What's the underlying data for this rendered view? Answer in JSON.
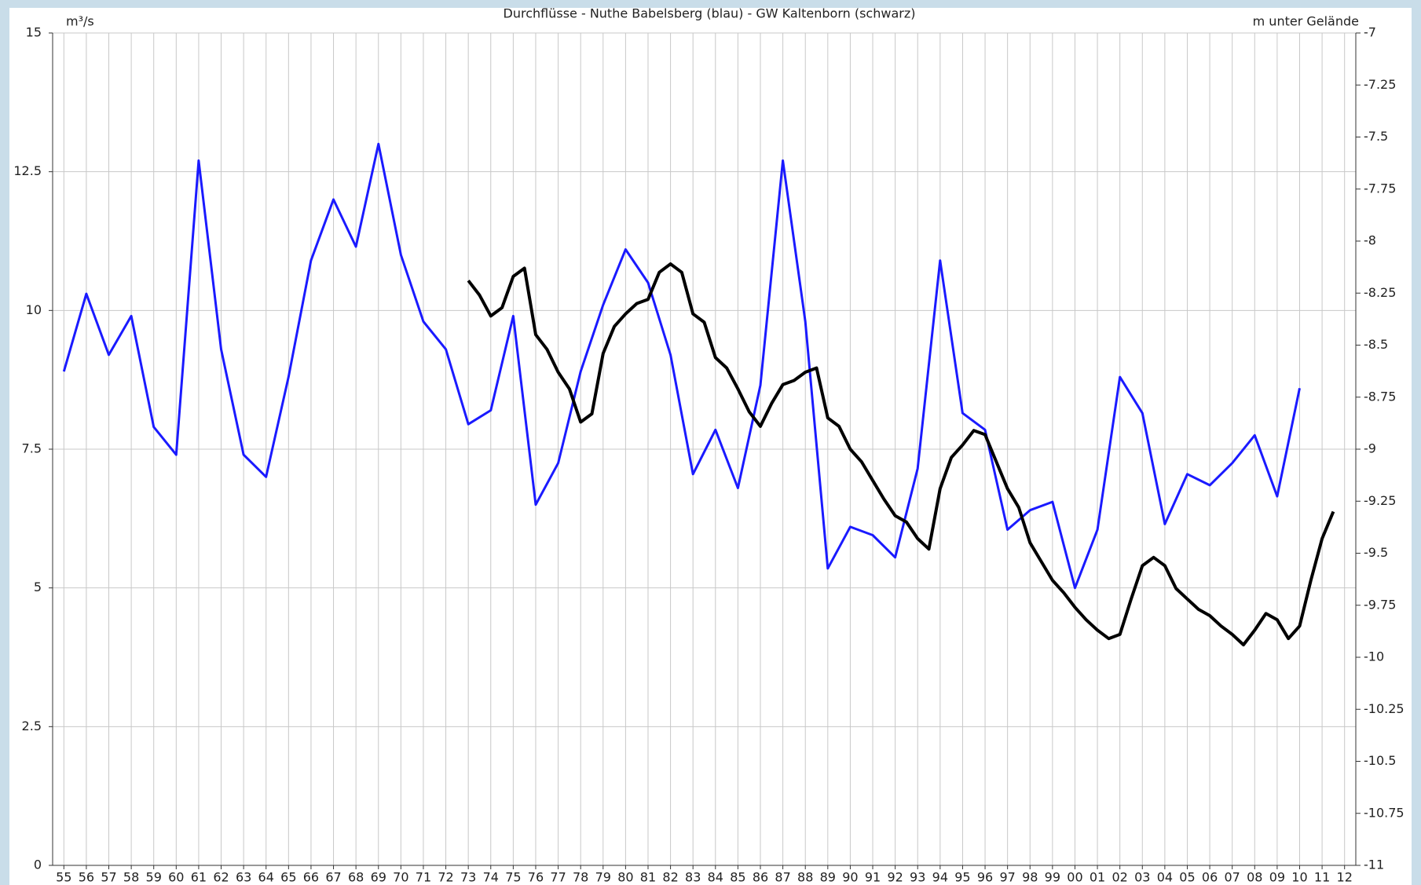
{
  "chart_data": {
    "type": "line",
    "title": "Durchflüsse - Nuthe Babelsberg (blau) - GW Kaltenborn (schwarz)",
    "y_label": "m³/s",
    "y2_label": "m unter Gelände",
    "xlim": [
      1954.5,
      2012.5
    ],
    "xticks": [
      {
        "value": 1955,
        "label": "55"
      },
      {
        "value": 1956,
        "label": "56"
      },
      {
        "value": 1957,
        "label": "57"
      },
      {
        "value": 1958,
        "label": "58"
      },
      {
        "value": 1959,
        "label": "59"
      },
      {
        "value": 1960,
        "label": "60"
      },
      {
        "value": 1961,
        "label": "61"
      },
      {
        "value": 1962,
        "label": "62"
      },
      {
        "value": 1963,
        "label": "63"
      },
      {
        "value": 1964,
        "label": "64"
      },
      {
        "value": 1965,
        "label": "65"
      },
      {
        "value": 1966,
        "label": "66"
      },
      {
        "value": 1967,
        "label": "67"
      },
      {
        "value": 1968,
        "label": "68"
      },
      {
        "value": 1969,
        "label": "69"
      },
      {
        "value": 1970,
        "label": "70"
      },
      {
        "value": 1971,
        "label": "71"
      },
      {
        "value": 1972,
        "label": "72"
      },
      {
        "value": 1973,
        "label": "73"
      },
      {
        "value": 1974,
        "label": "74"
      },
      {
        "value": 1975,
        "label": "75"
      },
      {
        "value": 1976,
        "label": "76"
      },
      {
        "value": 1977,
        "label": "77"
      },
      {
        "value": 1978,
        "label": "78"
      },
      {
        "value": 1979,
        "label": "79"
      },
      {
        "value": 1980,
        "label": "80"
      },
      {
        "value": 1981,
        "label": "81"
      },
      {
        "value": 1982,
        "label": "82"
      },
      {
        "value": 1983,
        "label": "83"
      },
      {
        "value": 1984,
        "label": "84"
      },
      {
        "value": 1985,
        "label": "85"
      },
      {
        "value": 1986,
        "label": "86"
      },
      {
        "value": 1987,
        "label": "87"
      },
      {
        "value": 1988,
        "label": "88"
      },
      {
        "value": 1989,
        "label": "89"
      },
      {
        "value": 1990,
        "label": "90"
      },
      {
        "value": 1991,
        "label": "91"
      },
      {
        "value": 1992,
        "label": "92"
      },
      {
        "value": 1993,
        "label": "93"
      },
      {
        "value": 1994,
        "label": "94"
      },
      {
        "value": 1995,
        "label": "95"
      },
      {
        "value": 1996,
        "label": "96"
      },
      {
        "value": 1997,
        "label": "97"
      },
      {
        "value": 1998,
        "label": "98"
      },
      {
        "value": 1999,
        "label": "99"
      },
      {
        "value": 2000,
        "label": "00"
      },
      {
        "value": 2001,
        "label": "01"
      },
      {
        "value": 2002,
        "label": "02"
      },
      {
        "value": 2003,
        "label": "03"
      },
      {
        "value": 2004,
        "label": "04"
      },
      {
        "value": 2005,
        "label": "05"
      },
      {
        "value": 2006,
        "label": "06"
      },
      {
        "value": 2007,
        "label": "07"
      },
      {
        "value": 2008,
        "label": "08"
      },
      {
        "value": 2009,
        "label": "09"
      },
      {
        "value": 2010,
        "label": "10"
      },
      {
        "value": 2011,
        "label": "11"
      },
      {
        "value": 2012,
        "label": "12"
      }
    ],
    "ylim": [
      0,
      15
    ],
    "yticks": [
      0,
      2.5,
      5,
      7.5,
      10,
      12.5,
      15
    ],
    "y2lim": [
      -11,
      -7
    ],
    "y2ticks": [
      -11,
      -10.75,
      -10.5,
      -10.25,
      -10,
      -9.75,
      -9.5,
      -9.25,
      -9,
      -8.75,
      -8.5,
      -8.25,
      -8,
      -7.75,
      -7.5,
      -7.25,
      -7
    ],
    "grid": true,
    "series": [
      {
        "color": "#1a1aff",
        "axis": "y",
        "x": [
          1955,
          1956,
          1957,
          1958,
          1959,
          1960,
          1961,
          1962,
          1963,
          1964,
          1965,
          1966,
          1967,
          1968,
          1969,
          1970,
          1971,
          1972,
          1973,
          1974,
          1975,
          1976,
          1977,
          1978,
          1979,
          1980,
          1981,
          1982,
          1983,
          1984,
          1985,
          1986,
          1987,
          1988,
          1989,
          1990,
          1991,
          1992,
          1993,
          1994,
          1995,
          1996,
          1997,
          1998,
          1999,
          2000,
          2001,
          2002,
          2003,
          2004,
          2005,
          2006,
          2007,
          2008,
          2009,
          2010
        ],
        "values": [
          8.9,
          10.3,
          9.2,
          9.9,
          7.9,
          7.4,
          12.7,
          9.3,
          7.4,
          7.0,
          8.8,
          10.9,
          12.0,
          11.15,
          13.0,
          11.0,
          9.8,
          9.3,
          7.95,
          8.2,
          9.9,
          6.5,
          7.25,
          8.9,
          10.1,
          11.1,
          10.5,
          9.2,
          7.05,
          7.85,
          6.8,
          8.65,
          12.7,
          9.8,
          5.35,
          6.1,
          5.95,
          5.55,
          7.15,
          10.9,
          8.15,
          7.85,
          6.05,
          6.4,
          6.55,
          5.0,
          6.05,
          8.8,
          8.15,
          6.15,
          7.05,
          6.85,
          7.25,
          7.75,
          6.65,
          8.6
        ]
      },
      {
        "color": "#000000",
        "axis": "y2",
        "x": [
          1973.0,
          1973.5,
          1974.0,
          1974.5,
          1975.0,
          1975.5,
          1976.0,
          1976.5,
          1977.0,
          1977.5,
          1978.0,
          1978.5,
          1979.0,
          1979.5,
          1980.0,
          1980.5,
          1981.0,
          1981.5,
          1982.0,
          1982.5,
          1983.0,
          1983.5,
          1984.0,
          1984.5,
          1985.0,
          1985.5,
          1986.0,
          1986.5,
          1987.0,
          1987.5,
          1988.0,
          1988.5,
          1989.0,
          1989.5,
          1990.0,
          1990.5,
          1991.0,
          1991.5,
          1992.0,
          1992.5,
          1993.0,
          1993.5,
          1994.0,
          1994.5,
          1995.0,
          1995.5,
          1996.0,
          1996.5,
          1997.0,
          1997.5,
          1998.0,
          1998.5,
          1999.0,
          1999.5,
          2000.0,
          2000.5,
          2001.0,
          2001.5,
          2002.0,
          2002.5,
          2003.0,
          2003.5,
          2004.0,
          2004.5,
          2005.0,
          2005.5,
          2006.0,
          2006.5,
          2007.0,
          2007.5,
          2008.0,
          2008.5,
          2009.0,
          2009.5,
          2010.0,
          2010.5,
          2011.0,
          2011.5
        ],
        "values": [
          -8.19,
          -8.26,
          -8.36,
          -8.32,
          -8.17,
          -8.13,
          -8.45,
          -8.52,
          -8.63,
          -8.71,
          -8.87,
          -8.83,
          -8.54,
          -8.41,
          -8.35,
          -8.3,
          -8.28,
          -8.15,
          -8.11,
          -8.15,
          -8.35,
          -8.39,
          -8.56,
          -8.61,
          -8.71,
          -8.82,
          -8.89,
          -8.78,
          -8.69,
          -8.67,
          -8.63,
          -8.61,
          -8.85,
          -8.89,
          -9.0,
          -9.06,
          -9.15,
          -9.24,
          -9.32,
          -9.35,
          -9.43,
          -9.48,
          -9.19,
          -9.04,
          -8.98,
          -8.91,
          -8.93,
          -9.06,
          -9.19,
          -9.28,
          -9.45,
          -9.54,
          -9.63,
          -9.69,
          -9.76,
          -9.82,
          -9.87,
          -9.91,
          -9.89,
          -9.72,
          -9.56,
          -9.52,
          -9.56,
          -9.67,
          -9.72,
          -9.77,
          -9.8,
          -9.85,
          -9.89,
          -9.94,
          -9.87,
          -9.79,
          -9.82,
          -9.91,
          -9.85,
          -9.63,
          -9.43,
          -9.3
        ]
      }
    ]
  }
}
